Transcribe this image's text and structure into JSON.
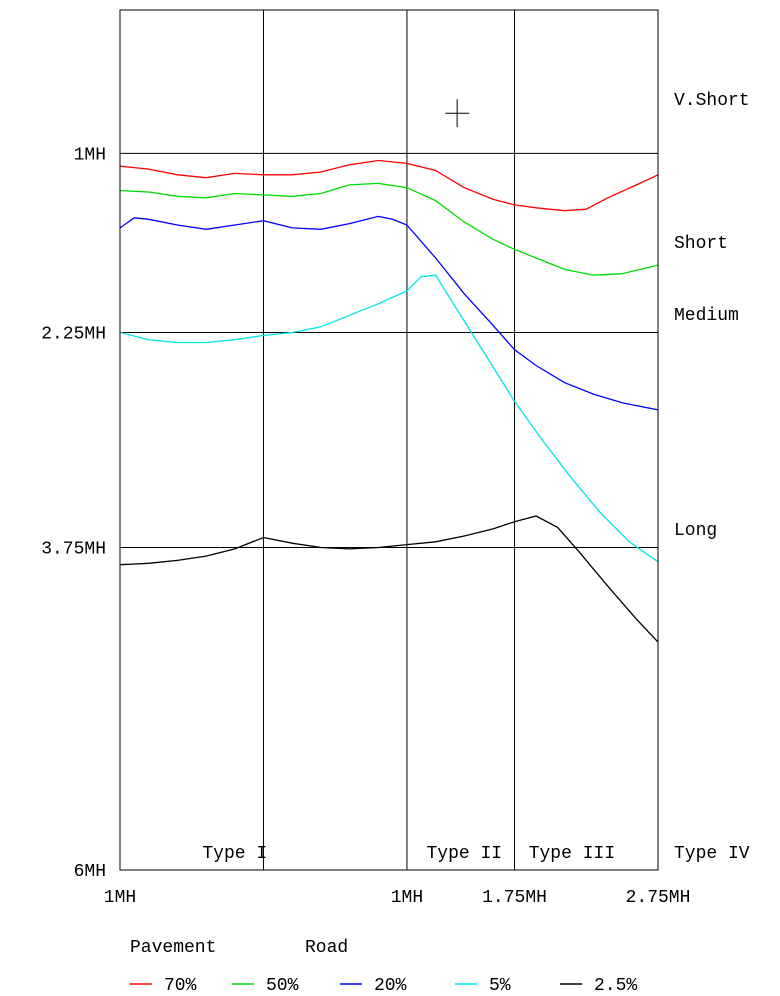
{
  "chart_data": {
    "type": "line",
    "title": "",
    "x_tick_labels": [
      {
        "x": 0,
        "label": "1MH"
      },
      {
        "x": 2,
        "label": "1MH"
      },
      {
        "x": 2.75,
        "label": "1.75MH"
      },
      {
        "x": 3.75,
        "label": "2.75MH"
      }
    ],
    "y_tick_labels": [
      {
        "y": 1,
        "label": "1MH"
      },
      {
        "y": 2.25,
        "label": "2.25MH"
      },
      {
        "y": 3.75,
        "label": "3.75MH"
      },
      {
        "y": 6,
        "label": "6MH"
      }
    ],
    "xlim": [
      0,
      3.75
    ],
    "ylim": [
      0,
      6
    ],
    "y_inverted": true,
    "vertical_gridlines": [
      1,
      2,
      2.75
    ],
    "horizontal_gridlines": [
      1,
      2.25,
      3.75
    ],
    "region_labels_right": [
      {
        "y": 0.62,
        "label": "V.Short"
      },
      {
        "y": 1.62,
        "label": "Short"
      },
      {
        "y": 2.12,
        "label": "Medium"
      },
      {
        "y": 3.62,
        "label": "Long"
      }
    ],
    "region_labels_bottom": [
      {
        "x": 0.8,
        "label": "Type I"
      },
      {
        "x": 2.4,
        "label": "Type II"
      },
      {
        "x": 3.15,
        "label": "Type III"
      },
      {
        "x": 3.75,
        "label": "Type IV"
      }
    ],
    "top_marker": {
      "x": 2.35,
      "y": 0.72,
      "symbol": "+"
    },
    "legend_title": [
      "Pavement",
      "Road"
    ],
    "series": [
      {
        "name": "70%",
        "color": "#ff0000",
        "points": [
          [
            0,
            1.09
          ],
          [
            0.2,
            1.11
          ],
          [
            0.4,
            1.15
          ],
          [
            0.6,
            1.17
          ],
          [
            0.8,
            1.14
          ],
          [
            1,
            1.15
          ],
          [
            1.2,
            1.15
          ],
          [
            1.4,
            1.13
          ],
          [
            1.6,
            1.08
          ],
          [
            1.8,
            1.05
          ],
          [
            2,
            1.07
          ],
          [
            2.2,
            1.12
          ],
          [
            2.4,
            1.24
          ],
          [
            2.6,
            1.32
          ],
          [
            2.75,
            1.36
          ],
          [
            2.9,
            1.38
          ],
          [
            3.1,
            1.4
          ],
          [
            3.25,
            1.39
          ],
          [
            3.4,
            1.31
          ],
          [
            3.6,
            1.22
          ],
          [
            3.75,
            1.15
          ]
        ]
      },
      {
        "name": "50%",
        "color": "#00dd00",
        "points": [
          [
            0,
            1.26
          ],
          [
            0.2,
            1.27
          ],
          [
            0.4,
            1.3
          ],
          [
            0.6,
            1.31
          ],
          [
            0.8,
            1.28
          ],
          [
            1,
            1.29
          ],
          [
            1.2,
            1.3
          ],
          [
            1.4,
            1.28
          ],
          [
            1.6,
            1.22
          ],
          [
            1.8,
            1.21
          ],
          [
            2,
            1.24
          ],
          [
            2.2,
            1.33
          ],
          [
            2.4,
            1.48
          ],
          [
            2.6,
            1.6
          ],
          [
            2.75,
            1.67
          ],
          [
            2.9,
            1.73
          ],
          [
            3.1,
            1.81
          ],
          [
            3.3,
            1.85
          ],
          [
            3.5,
            1.84
          ],
          [
            3.75,
            1.78
          ]
        ]
      },
      {
        "name": "20%",
        "color": "#0000ff",
        "points": [
          [
            0,
            1.52
          ],
          [
            0.1,
            1.45
          ],
          [
            0.2,
            1.46
          ],
          [
            0.4,
            1.5
          ],
          [
            0.6,
            1.53
          ],
          [
            0.8,
            1.5
          ],
          [
            1,
            1.47
          ],
          [
            1.2,
            1.52
          ],
          [
            1.4,
            1.53
          ],
          [
            1.6,
            1.49
          ],
          [
            1.8,
            1.44
          ],
          [
            1.9,
            1.46
          ],
          [
            2,
            1.5
          ],
          [
            2.2,
            1.73
          ],
          [
            2.4,
            1.98
          ],
          [
            2.6,
            2.2
          ],
          [
            2.75,
            2.37
          ],
          [
            2.9,
            2.48
          ],
          [
            3.1,
            2.6
          ],
          [
            3.3,
            2.68
          ],
          [
            3.5,
            2.74
          ],
          [
            3.75,
            2.79
          ]
        ]
      },
      {
        "name": "5%",
        "color": "#00e5e5",
        "points": [
          [
            0,
            2.25
          ],
          [
            0.2,
            2.3
          ],
          [
            0.4,
            2.32
          ],
          [
            0.6,
            2.32
          ],
          [
            0.8,
            2.3
          ],
          [
            1,
            2.27
          ],
          [
            1.2,
            2.25
          ],
          [
            1.4,
            2.21
          ],
          [
            1.6,
            2.13
          ],
          [
            1.8,
            2.05
          ],
          [
            2,
            1.96
          ],
          [
            2.1,
            1.86
          ],
          [
            2.2,
            1.85
          ],
          [
            2.35,
            2.09
          ],
          [
            2.55,
            2.41
          ],
          [
            2.75,
            2.73
          ],
          [
            2.95,
            3.01
          ],
          [
            3.15,
            3.27
          ],
          [
            3.35,
            3.51
          ],
          [
            3.55,
            3.71
          ],
          [
            3.75,
            3.85
          ]
        ]
      },
      {
        "name": "2.5%",
        "color": "#000000",
        "points": [
          [
            0,
            3.87
          ],
          [
            0.2,
            3.86
          ],
          [
            0.4,
            3.84
          ],
          [
            0.6,
            3.81
          ],
          [
            0.8,
            3.76
          ],
          [
            1,
            3.68
          ],
          [
            1.2,
            3.72
          ],
          [
            1.4,
            3.75
          ],
          [
            1.6,
            3.76
          ],
          [
            1.8,
            3.75
          ],
          [
            2,
            3.73
          ],
          [
            2.2,
            3.71
          ],
          [
            2.4,
            3.67
          ],
          [
            2.6,
            3.62
          ],
          [
            2.75,
            3.57
          ],
          [
            2.9,
            3.53
          ],
          [
            3.05,
            3.61
          ],
          [
            3.2,
            3.78
          ],
          [
            3.4,
            4.02
          ],
          [
            3.6,
            4.25
          ],
          [
            3.75,
            4.41
          ]
        ]
      }
    ]
  }
}
